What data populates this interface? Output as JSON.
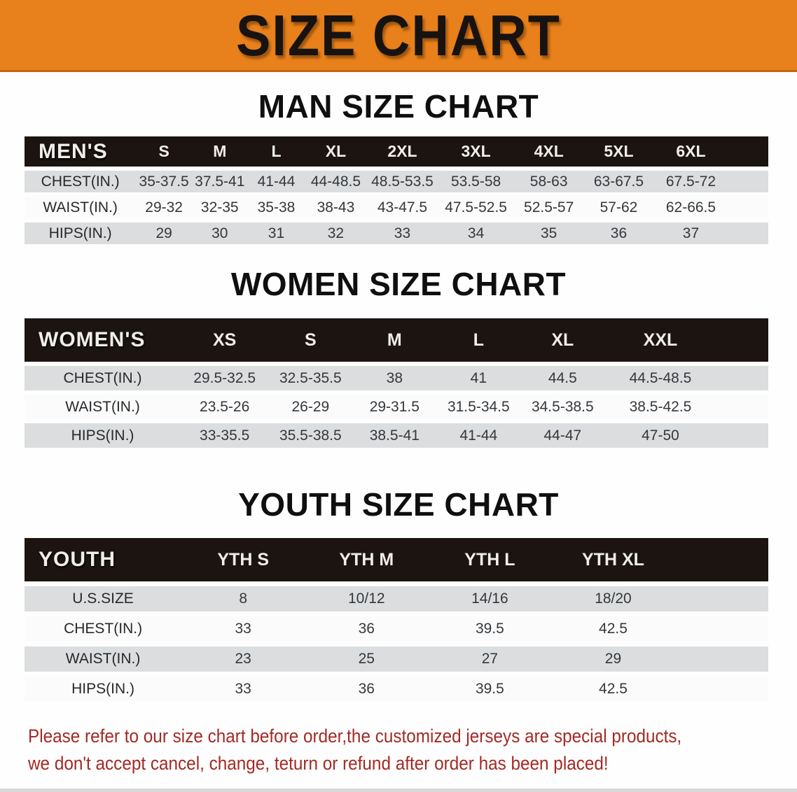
{
  "banner": {
    "title": "SIZE CHART",
    "bg_color": "#E8801B",
    "text_color": "#171310"
  },
  "sections": [
    {
      "heading": "MAN SIZE CHART",
      "table": {
        "label": "MEN'S",
        "columns": [
          "S",
          "M",
          "L",
          "XL",
          "2XL",
          "3XL",
          "4XL",
          "5XL",
          "6XL"
        ],
        "rows": [
          {
            "label": "CHEST(IN.)",
            "values": [
              "35-37.5",
              "37.5-41",
              "41-44",
              "44-48.5",
              "48.5-53.5",
              "53.5-58",
              "58-63",
              "63-67.5",
              "67.5-72"
            ]
          },
          {
            "label": "WAIST(IN.)",
            "values": [
              "29-32",
              "32-35",
              "35-38",
              "38-43",
              "43-47.5",
              "47.5-52.5",
              "52.5-57",
              "57-62",
              "62-66.5"
            ]
          },
          {
            "label": "HIPS(IN.)",
            "values": [
              "29",
              "30",
              "31",
              "32",
              "33",
              "34",
              "35",
              "36",
              "37"
            ]
          }
        ]
      }
    },
    {
      "heading": "WOMEN SIZE CHART",
      "table": {
        "label": "WOMEN'S",
        "columns": [
          "XS",
          "S",
          "M",
          "L",
          "XL",
          "XXL"
        ],
        "rows": [
          {
            "label": "CHEST(IN.)",
            "values": [
              "29.5-32.5",
              "32.5-35.5",
              "38",
              "41",
              "44.5",
              "44.5-48.5"
            ]
          },
          {
            "label": "WAIST(IN.)",
            "values": [
              "23.5-26",
              "26-29",
              "29-31.5",
              "31.5-34.5",
              "34.5-38.5",
              "38.5-42.5"
            ]
          },
          {
            "label": "HIPS(IN.)",
            "values": [
              "33-35.5",
              "35.5-38.5",
              "38.5-41",
              "41-44",
              "44-47",
              "47-50"
            ]
          }
        ]
      }
    },
    {
      "heading": "YOUTH SIZE CHART",
      "table": {
        "label": "YOUTH",
        "columns": [
          "YTH S",
          "YTH M",
          "YTH L",
          "YTH XL"
        ],
        "rows": [
          {
            "label": "U.S.SIZE",
            "values": [
              "8",
              "10/12",
              "14/16",
              "18/20"
            ]
          },
          {
            "label": "CHEST(IN.)",
            "values": [
              "33",
              "36",
              "39.5",
              "42.5"
            ]
          },
          {
            "label": "WAIST(IN.)",
            "values": [
              "23",
              "25",
              "27",
              "29"
            ]
          },
          {
            "label": "HIPS(IN.)",
            "values": [
              "33",
              "36",
              "39.5",
              "42.5"
            ]
          }
        ]
      }
    }
  ],
  "disclaimer": {
    "line1": "Please refer to our size chart before order,the customized jerseys are special products,",
    "line2": "we don't accept cancel, change, teturn or refund after order has been placed!",
    "text_color": "#A32A24"
  },
  "colors": {
    "banner_orange": "#E8801B",
    "table_bar_black": "#1B1410",
    "row_gray": "#DBDDDE",
    "row_white": "#FBFBFB"
  }
}
